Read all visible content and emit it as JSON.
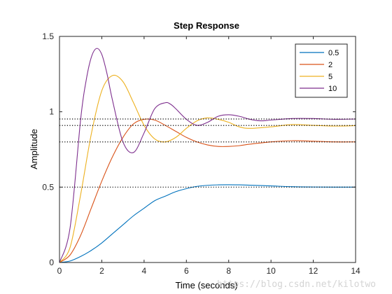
{
  "chart_data": {
    "type": "line",
    "title": "Step Response",
    "xlabel": "Time (seconds)",
    "ylabel": "Amplitude",
    "xlim": [
      0,
      14
    ],
    "ylim": [
      0,
      1.5
    ],
    "xticks": [
      "0",
      "2",
      "4",
      "6",
      "8",
      "10",
      "12",
      "14"
    ],
    "yticks": [
      "0",
      "0.5",
      "1",
      "1.5"
    ],
    "grid": false,
    "legend_position": "top-right",
    "reference_lines": [
      0.5,
      0.8,
      0.909,
      0.952
    ],
    "series": [
      {
        "name": "0.5",
        "color": "#0072BD",
        "x": [
          0,
          0.5,
          1,
          1.5,
          2,
          2.5,
          3,
          3.5,
          4,
          4.5,
          5,
          5.5,
          6,
          6.5,
          7,
          7.5,
          8,
          8.5,
          9,
          10,
          11,
          12,
          13,
          14
        ],
        "y": [
          0,
          0.01,
          0.04,
          0.08,
          0.13,
          0.19,
          0.25,
          0.31,
          0.36,
          0.41,
          0.44,
          0.47,
          0.49,
          0.505,
          0.512,
          0.515,
          0.516,
          0.515,
          0.513,
          0.508,
          0.503,
          0.501,
          0.5,
          0.5
        ]
      },
      {
        "name": "2",
        "color": "#D95319",
        "x": [
          0,
          0.5,
          1,
          1.5,
          2,
          2.5,
          3,
          3.5,
          4,
          4.5,
          5,
          5.5,
          6,
          6.5,
          7,
          7.5,
          8,
          8.5,
          9,
          10,
          11,
          12,
          13,
          14
        ],
        "y": [
          0,
          0.05,
          0.18,
          0.36,
          0.54,
          0.7,
          0.83,
          0.92,
          0.95,
          0.945,
          0.91,
          0.87,
          0.83,
          0.8,
          0.78,
          0.77,
          0.77,
          0.775,
          0.785,
          0.8,
          0.808,
          0.805,
          0.8,
          0.8
        ]
      },
      {
        "name": "5",
        "color": "#EDB120",
        "x": [
          0,
          0.5,
          1,
          1.5,
          2,
          2.5,
          3,
          3.5,
          4,
          4.5,
          5,
          5.5,
          6,
          6.5,
          7,
          7.5,
          8,
          8.5,
          9,
          10,
          11,
          12,
          13,
          14
        ],
        "y": [
          0,
          0.1,
          0.45,
          0.85,
          1.14,
          1.24,
          1.2,
          1.06,
          0.91,
          0.82,
          0.8,
          0.83,
          0.89,
          0.94,
          0.96,
          0.95,
          0.93,
          0.9,
          0.89,
          0.9,
          0.915,
          0.91,
          0.905,
          0.908
        ]
      },
      {
        "name": "10",
        "color": "#7E2F8E",
        "x": [
          0,
          0.5,
          1,
          1.25,
          1.5,
          1.75,
          2,
          2.25,
          2.5,
          3,
          3.5,
          4,
          4.5,
          5,
          5.25,
          5.5,
          6,
          6.5,
          7,
          7.5,
          8,
          8.5,
          9,
          9.5,
          10,
          11,
          12,
          13,
          14
        ],
        "y": [
          0,
          0.23,
          0.95,
          1.2,
          1.36,
          1.42,
          1.38,
          1.25,
          1.08,
          0.8,
          0.73,
          0.86,
          1.02,
          1.06,
          1.05,
          1.02,
          0.95,
          0.91,
          0.93,
          0.97,
          0.98,
          0.97,
          0.95,
          0.94,
          0.945,
          0.955,
          0.955,
          0.95,
          0.952
        ]
      }
    ]
  },
  "watermark": "https://blog.csdn.net/kilotwo"
}
